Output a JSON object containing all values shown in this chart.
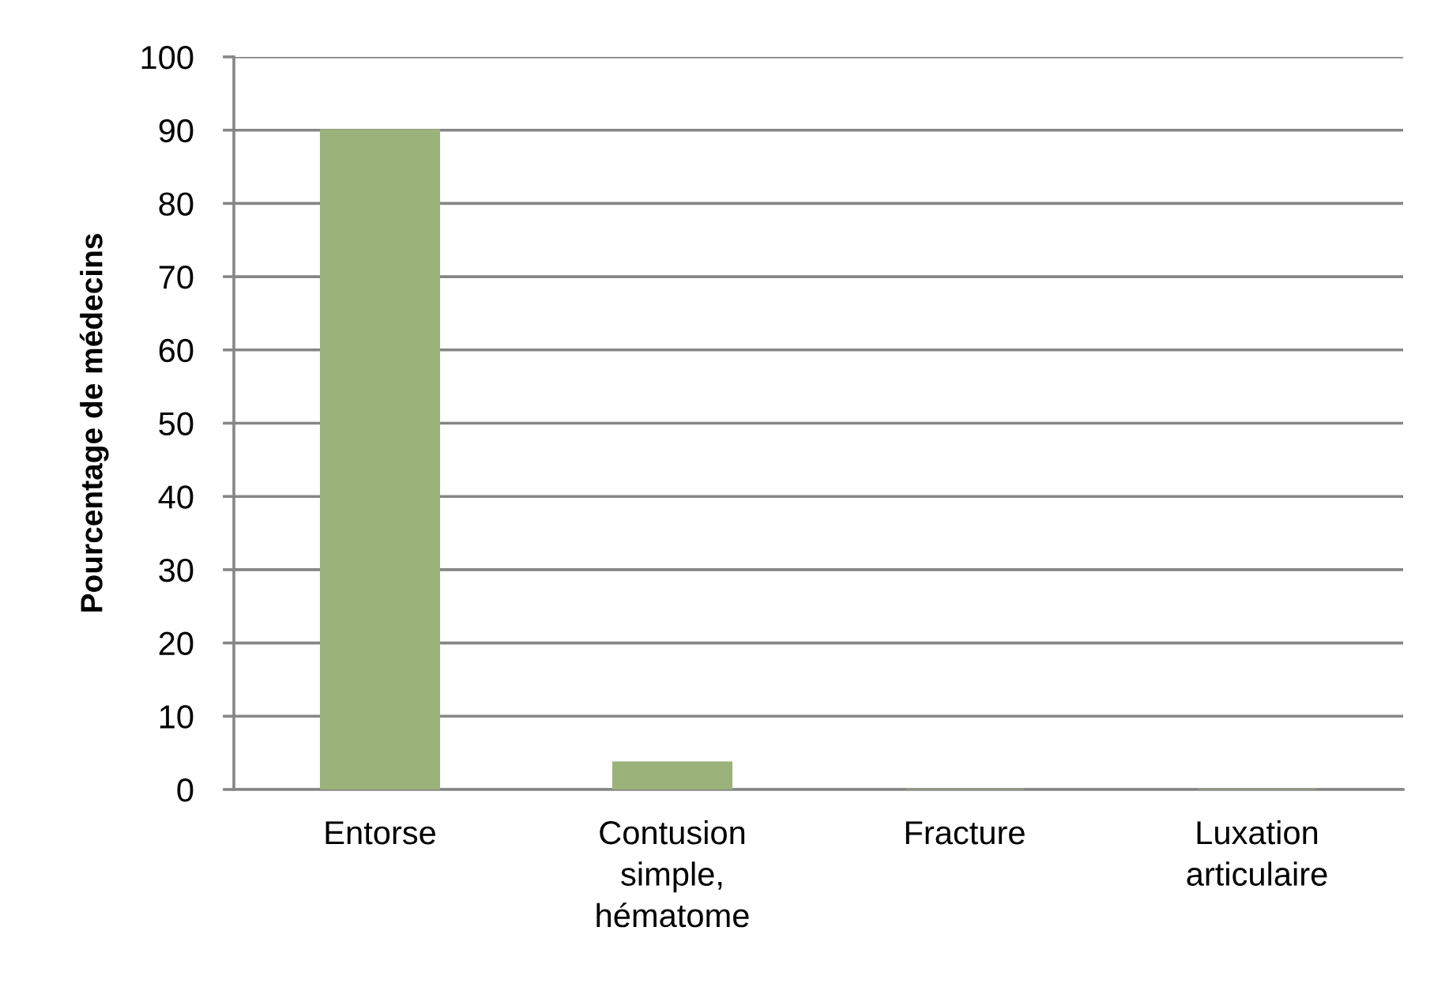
{
  "chart_data": {
    "type": "bar",
    "ylabel": "Pourcentage de médecins",
    "categories": [
      "Entorse",
      "Contusion\nsimple,\nhématome",
      "Fracture",
      "Luxation\narticulaire"
    ],
    "values": [
      90,
      3.7,
      0,
      0
    ],
    "color": "#9bb27a",
    "ylim": [
      0,
      100
    ],
    "yticks": [
      0,
      10,
      20,
      30,
      40,
      50,
      60,
      70,
      80,
      90,
      100
    ],
    "grid": "y"
  }
}
